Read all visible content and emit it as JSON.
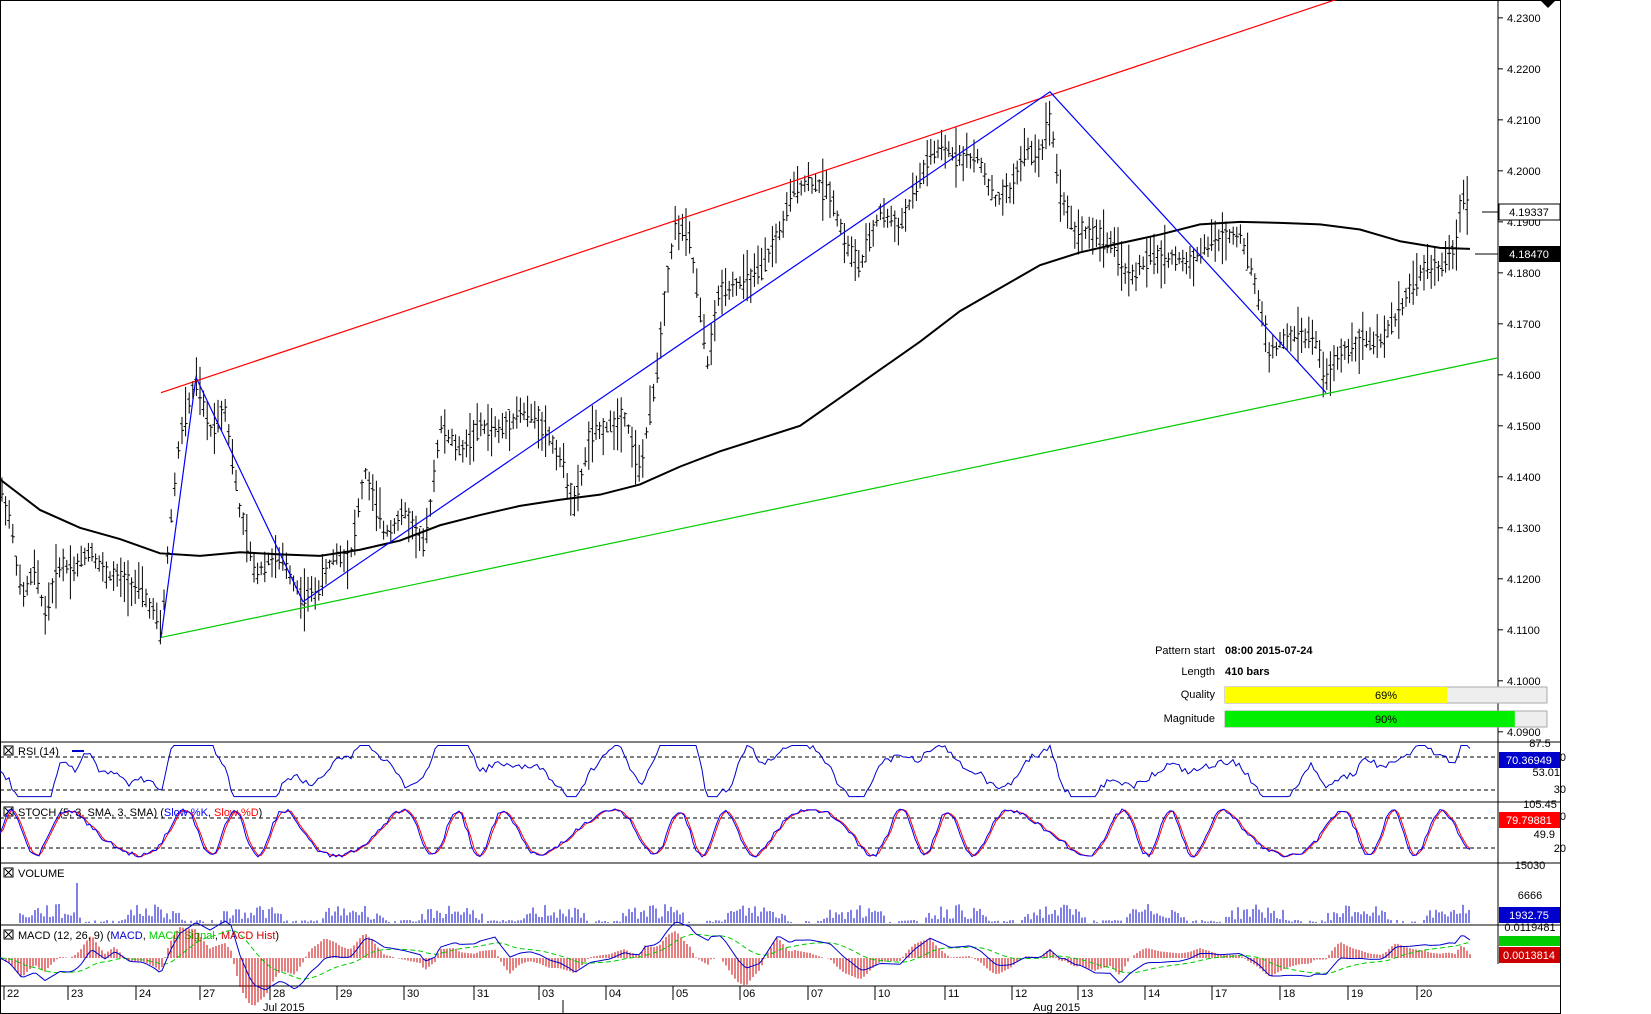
{
  "chart_data": {
    "type": "candlestick",
    "price_axis": {
      "ticks": [
        "4.2300",
        "4.2200",
        "4.2100",
        "4.2000",
        "4.1900",
        "4.1800",
        "4.1700",
        "4.1600",
        "4.1500",
        "4.1400",
        "4.1300",
        "4.1200",
        "4.1100",
        "4.1000",
        "4.0900"
      ],
      "range": [
        4.088,
        4.2335
      ],
      "current_price": "4.19337",
      "ma_value": "4.18470"
    },
    "date_axis": {
      "days": [
        "22",
        "23",
        "24",
        "27",
        "28",
        "29",
        "30",
        "31",
        "03",
        "04",
        "05",
        "06",
        "07",
        "10",
        "11",
        "12",
        "13",
        "14",
        "17",
        "18",
        "19",
        "20"
      ],
      "months": [
        "Jul 2015",
        "Aug 2015"
      ]
    },
    "price_series": [
      {
        "x": 0,
        "y": 4.138
      },
      {
        "x": 10,
        "y": 4.132
      },
      {
        "x": 22,
        "y": 4.116
      },
      {
        "x": 35,
        "y": 4.122
      },
      {
        "x": 45,
        "y": 4.113
      },
      {
        "x": 60,
        "y": 4.123
      },
      {
        "x": 75,
        "y": 4.122
      },
      {
        "x": 90,
        "y": 4.126
      },
      {
        "x": 105,
        "y": 4.121
      },
      {
        "x": 120,
        "y": 4.12
      },
      {
        "x": 140,
        "y": 4.118
      },
      {
        "x": 155,
        "y": 4.113
      },
      {
        "x": 161,
        "y": 4.109
      },
      {
        "x": 170,
        "y": 4.13
      },
      {
        "x": 180,
        "y": 4.148
      },
      {
        "x": 196,
        "y": 4.159
      },
      {
        "x": 210,
        "y": 4.149
      },
      {
        "x": 225,
        "y": 4.154
      },
      {
        "x": 240,
        "y": 4.133
      },
      {
        "x": 255,
        "y": 4.121
      },
      {
        "x": 270,
        "y": 4.124
      },
      {
        "x": 285,
        "y": 4.123
      },
      {
        "x": 303,
        "y": 4.116
      },
      {
        "x": 318,
        "y": 4.118
      },
      {
        "x": 335,
        "y": 4.125
      },
      {
        "x": 350,
        "y": 4.124
      },
      {
        "x": 365,
        "y": 4.141
      },
      {
        "x": 385,
        "y": 4.129
      },
      {
        "x": 405,
        "y": 4.133
      },
      {
        "x": 425,
        "y": 4.126
      },
      {
        "x": 440,
        "y": 4.15
      },
      {
        "x": 460,
        "y": 4.145
      },
      {
        "x": 480,
        "y": 4.15
      },
      {
        "x": 500,
        "y": 4.149
      },
      {
        "x": 520,
        "y": 4.153
      },
      {
        "x": 540,
        "y": 4.151
      },
      {
        "x": 560,
        "y": 4.144
      },
      {
        "x": 575,
        "y": 4.134
      },
      {
        "x": 590,
        "y": 4.148
      },
      {
        "x": 610,
        "y": 4.15
      },
      {
        "x": 625,
        "y": 4.152
      },
      {
        "x": 640,
        "y": 4.141
      },
      {
        "x": 655,
        "y": 4.158
      },
      {
        "x": 668,
        "y": 4.18
      },
      {
        "x": 676,
        "y": 4.19
      },
      {
        "x": 690,
        "y": 4.186
      },
      {
        "x": 708,
        "y": 4.162
      },
      {
        "x": 720,
        "y": 4.177
      },
      {
        "x": 740,
        "y": 4.178
      },
      {
        "x": 760,
        "y": 4.18
      },
      {
        "x": 780,
        "y": 4.188
      },
      {
        "x": 795,
        "y": 4.197
      },
      {
        "x": 810,
        "y": 4.198
      },
      {
        "x": 830,
        "y": 4.196
      },
      {
        "x": 845,
        "y": 4.186
      },
      {
        "x": 860,
        "y": 4.181
      },
      {
        "x": 880,
        "y": 4.192
      },
      {
        "x": 900,
        "y": 4.189
      },
      {
        "x": 915,
        "y": 4.196
      },
      {
        "x": 930,
        "y": 4.203
      },
      {
        "x": 945,
        "y": 4.204
      },
      {
        "x": 960,
        "y": 4.203
      },
      {
        "x": 980,
        "y": 4.202
      },
      {
        "x": 995,
        "y": 4.194
      },
      {
        "x": 1010,
        "y": 4.196
      },
      {
        "x": 1025,
        "y": 4.204
      },
      {
        "x": 1040,
        "y": 4.203
      },
      {
        "x": 1050,
        "y": 4.211
      },
      {
        "x": 1060,
        "y": 4.196
      },
      {
        "x": 1075,
        "y": 4.188
      },
      {
        "x": 1090,
        "y": 4.188
      },
      {
        "x": 1110,
        "y": 4.186
      },
      {
        "x": 1130,
        "y": 4.179
      },
      {
        "x": 1150,
        "y": 4.183
      },
      {
        "x": 1170,
        "y": 4.183
      },
      {
        "x": 1190,
        "y": 4.182
      },
      {
        "x": 1210,
        "y": 4.186
      },
      {
        "x": 1225,
        "y": 4.187
      },
      {
        "x": 1240,
        "y": 4.188
      },
      {
        "x": 1255,
        "y": 4.178
      },
      {
        "x": 1270,
        "y": 4.164
      },
      {
        "x": 1285,
        "y": 4.167
      },
      {
        "x": 1300,
        "y": 4.168
      },
      {
        "x": 1315,
        "y": 4.167
      },
      {
        "x": 1326,
        "y": 4.159
      },
      {
        "x": 1340,
        "y": 4.164
      },
      {
        "x": 1360,
        "y": 4.167
      },
      {
        "x": 1380,
        "y": 4.166
      },
      {
        "x": 1395,
        "y": 4.171
      },
      {
        "x": 1410,
        "y": 4.177
      },
      {
        "x": 1425,
        "y": 4.181
      },
      {
        "x": 1440,
        "y": 4.181
      },
      {
        "x": 1455,
        "y": 4.184
      },
      {
        "x": 1462,
        "y": 4.196
      },
      {
        "x": 1470,
        "y": 4.193
      }
    ],
    "ma_series": [
      {
        "x": 0,
        "y": 4.1395
      },
      {
        "x": 40,
        "y": 4.1335
      },
      {
        "x": 80,
        "y": 4.13
      },
      {
        "x": 120,
        "y": 4.1278
      },
      {
        "x": 160,
        "y": 4.125
      },
      {
        "x": 200,
        "y": 4.1245
      },
      {
        "x": 240,
        "y": 4.1252
      },
      {
        "x": 280,
        "y": 4.1248
      },
      {
        "x": 320,
        "y": 4.1245
      },
      {
        "x": 360,
        "y": 4.1257
      },
      {
        "x": 400,
        "y": 4.1275
      },
      {
        "x": 440,
        "y": 4.1305
      },
      {
        "x": 480,
        "y": 4.1325
      },
      {
        "x": 520,
        "y": 4.1343
      },
      {
        "x": 560,
        "y": 4.1355
      },
      {
        "x": 600,
        "y": 4.1365
      },
      {
        "x": 640,
        "y": 4.1385
      },
      {
        "x": 680,
        "y": 4.142
      },
      {
        "x": 720,
        "y": 4.145
      },
      {
        "x": 760,
        "y": 4.1475
      },
      {
        "x": 800,
        "y": 4.15
      },
      {
        "x": 840,
        "y": 4.1555
      },
      {
        "x": 880,
        "y": 4.161
      },
      {
        "x": 920,
        "y": 4.1665
      },
      {
        "x": 960,
        "y": 4.1725
      },
      {
        "x": 1000,
        "y": 4.177
      },
      {
        "x": 1040,
        "y": 4.1815
      },
      {
        "x": 1080,
        "y": 4.184
      },
      {
        "x": 1120,
        "y": 4.1858
      },
      {
        "x": 1160,
        "y": 4.1875
      },
      {
        "x": 1200,
        "y": 4.1895
      },
      {
        "x": 1240,
        "y": 4.19
      },
      {
        "x": 1280,
        "y": 4.1898
      },
      {
        "x": 1320,
        "y": 4.1895
      },
      {
        "x": 1360,
        "y": 4.1885
      },
      {
        "x": 1400,
        "y": 4.1862
      },
      {
        "x": 1440,
        "y": 4.1849
      },
      {
        "x": 1470,
        "y": 4.1847
      }
    ],
    "channel_upper": {
      "x1": 161,
      "y1": 4.1565,
      "x2": 1350,
      "y2": 4.2345
    },
    "channel_lower": {
      "x1": 161,
      "y1": 4.1085,
      "x2": 1497,
      "y2": 4.1633
    },
    "zigzag": [
      {
        "x": 161,
        "y": 4.1085
      },
      {
        "x": 196,
        "y": 4.1595
      },
      {
        "x": 303,
        "y": 4.1155
      },
      {
        "x": 1050,
        "y": 4.2155
      },
      {
        "x": 1326,
        "y": 4.1565
      }
    ],
    "pattern_info": {
      "pattern_start_label": "Pattern start",
      "pattern_start_value": "08:00 2015-07-24",
      "length_label": "Length",
      "length_value": "410 bars",
      "quality_label": "Quality",
      "quality_value": "69%",
      "quality_fraction": 0.69,
      "magnitude_label": "Magnitude",
      "magnitude_value": "90%",
      "magnitude_fraction": 0.9
    },
    "indicators": {
      "rsi": {
        "label": "RSI (14)",
        "levels": [
          "70",
          "30"
        ],
        "top": "87.5",
        "mid": "53.01",
        "value": "70.36949"
      },
      "stoch": {
        "label_prefix": "STOCH (5, 3, SMA, 3, SMA) (",
        "label_k": "Slow %K",
        "label_sep": ", ",
        "label_d": "Slow %D",
        "label_suffix": ")",
        "levels": [
          "80",
          "20"
        ],
        "top": "105.45",
        "mid": "49.9",
        "value": "79.79881"
      },
      "volume": {
        "label": "VOLUME",
        "top": "15030",
        "mid": "6666",
        "value": "1932.75"
      },
      "macd": {
        "label_prefix": "MACD (12, 26, 9) (",
        "label_macd": "MACD",
        "label_sep": ", ",
        "label_signal": "MACD Signal",
        "label_hist": "MACD Hist",
        "label_suffix": ")",
        "top": "0.0119481",
        "value": "0.0013814"
      }
    }
  },
  "colors": {
    "bars": "#000000",
    "ma": "#000000",
    "channel_upper": "#ff0000",
    "channel_lower": "#00cc00",
    "zigzag": "#0000ff",
    "quality": "#ffff00",
    "magnitude": "#00ee00",
    "rsi_line": "#0000cc",
    "stoch_k": "#0000ff",
    "stoch_d": "#ff0000",
    "volume": "#0000cc",
    "macd_line": "#0000cc",
    "macd_signal": "#00cc00",
    "macd_hist": "#cc0000"
  }
}
